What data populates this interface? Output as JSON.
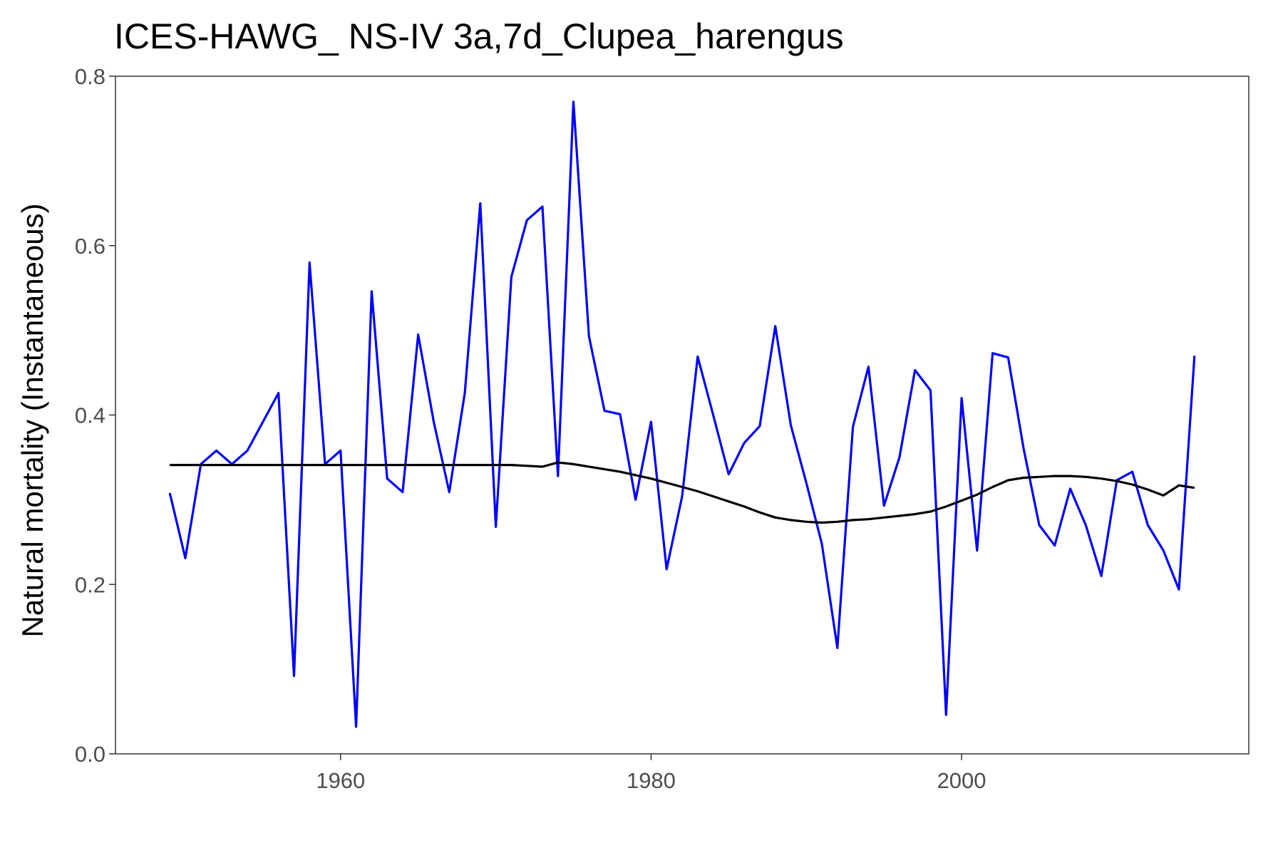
{
  "chart_data": {
    "type": "line",
    "title": "ICES-HAWG_ NS-IV 3a,7d_Clupea_harengus",
    "xlabel": "",
    "ylabel": "Natural mortality (Instantaneous)",
    "xlim": [
      1945.5,
      2018.5
    ],
    "ylim": [
      0.0,
      0.8
    ],
    "x_ticks": [
      1960,
      1980,
      2000
    ],
    "y_ticks": [
      0.0,
      0.2,
      0.4,
      0.6,
      0.8
    ],
    "y_tick_labels": [
      "0.0",
      "0.2",
      "0.4",
      "0.6",
      "0.8"
    ],
    "grid": false,
    "legend": "none",
    "x": [
      1949,
      1950,
      1951,
      1952,
      1953,
      1954,
      1955,
      1956,
      1957,
      1958,
      1959,
      1960,
      1961,
      1962,
      1963,
      1964,
      1965,
      1966,
      1967,
      1968,
      1969,
      1970,
      1971,
      1972,
      1973,
      1974,
      1975,
      1976,
      1977,
      1978,
      1979,
      1980,
      1981,
      1982,
      1983,
      1984,
      1985,
      1986,
      1987,
      1988,
      1989,
      1990,
      1991,
      1992,
      1993,
      1994,
      1995,
      1996,
      1997,
      1998,
      1999,
      2000,
      2001,
      2002,
      2003,
      2004,
      2005,
      2006,
      2007,
      2008,
      2009,
      2010,
      2011,
      2012,
      2013,
      2014,
      2015
    ],
    "series": [
      {
        "color": "#0000ff",
        "values": [
          0.308,
          0.231,
          0.342,
          0.358,
          0.342,
          0.358,
          0.392,
          0.426,
          0.092,
          0.58,
          0.342,
          0.358,
          0.032,
          0.546,
          0.325,
          0.309,
          0.495,
          0.392,
          0.309,
          0.426,
          0.65,
          0.268,
          0.563,
          0.63,
          0.646,
          0.328,
          0.77,
          0.493,
          0.405,
          0.401,
          0.3,
          0.392,
          0.218,
          0.304,
          0.469,
          0.4,
          0.33,
          0.367,
          0.387,
          0.505,
          0.388,
          0.32,
          0.248,
          0.125,
          0.386,
          0.457,
          0.293,
          0.35,
          0.453,
          0.429,
          0.046,
          0.42,
          0.24,
          0.473,
          0.468,
          0.36,
          0.27,
          0.246,
          0.313,
          0.27,
          0.21,
          0.323,
          0.333,
          0.27,
          0.24,
          0.194,
          0.47
        ]
      },
      {
        "color": "#000000",
        "values": [
          0.341,
          0.341,
          0.341,
          0.341,
          0.341,
          0.341,
          0.341,
          0.341,
          0.341,
          0.341,
          0.341,
          0.341,
          0.341,
          0.341,
          0.341,
          0.341,
          0.341,
          0.341,
          0.341,
          0.341,
          0.341,
          0.341,
          0.341,
          0.34,
          0.339,
          0.344,
          0.342,
          0.339,
          0.336,
          0.333,
          0.329,
          0.325,
          0.32,
          0.315,
          0.31,
          0.304,
          0.298,
          0.292,
          0.285,
          0.279,
          0.276,
          0.274,
          0.273,
          0.274,
          0.276,
          0.277,
          0.279,
          0.281,
          0.283,
          0.286,
          0.292,
          0.299,
          0.306,
          0.315,
          0.323,
          0.326,
          0.327,
          0.328,
          0.328,
          0.327,
          0.325,
          0.322,
          0.318,
          0.312,
          0.305,
          0.317,
          0.314
        ]
      }
    ]
  }
}
